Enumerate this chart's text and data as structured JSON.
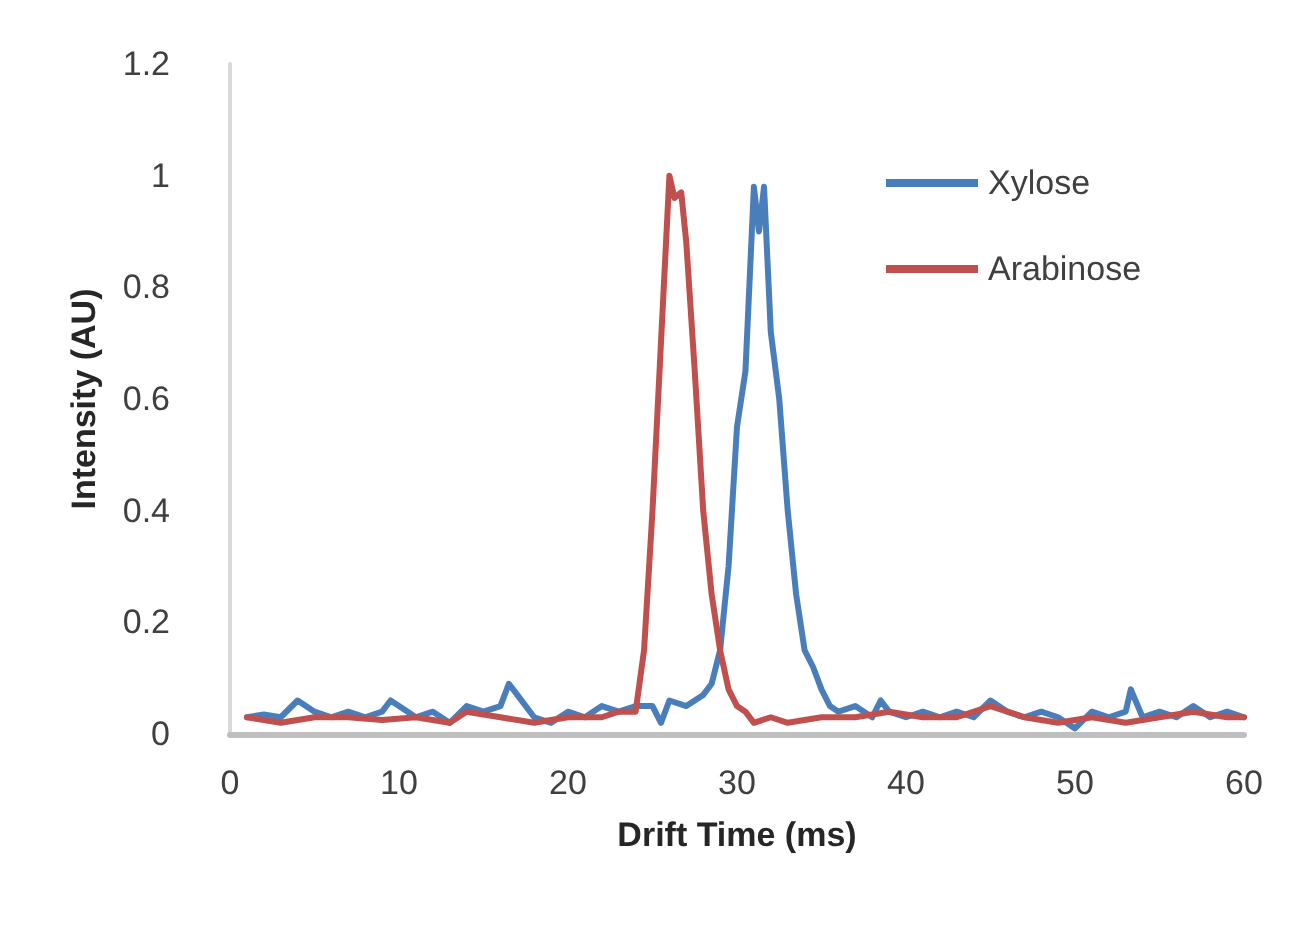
{
  "chart_data": {
    "type": "line",
    "xlabel": "Drift Time (ms)",
    "ylabel": "Intensity (AU)",
    "xlim": [
      0,
      60
    ],
    "xticks": [
      0,
      10,
      20,
      30,
      40,
      50,
      60
    ],
    "ylim": [
      0,
      1.2
    ],
    "yticks": [
      0,
      0.2,
      0.4,
      0.6,
      0.8,
      1,
      1.2
    ],
    "grid": false,
    "legend": "top right",
    "marker": "none",
    "line_style": "solid",
    "series": [
      {
        "name": "Xylose",
        "color": "#4a7ebb",
        "x": [
          1,
          2,
          3,
          4,
          5,
          6,
          7,
          8,
          9,
          9.5,
          10,
          11,
          12,
          13,
          14,
          15,
          16,
          16.5,
          17,
          18,
          19,
          20,
          21,
          22,
          23,
          24,
          25,
          25.5,
          26,
          27,
          28,
          28.5,
          29,
          29.5,
          30,
          30.5,
          31,
          31.3,
          31.6,
          32,
          32.5,
          33,
          33.5,
          34,
          34.5,
          35,
          35.5,
          36,
          37,
          38,
          38.5,
          39,
          40,
          41,
          42,
          43,
          44,
          45,
          46,
          47,
          48,
          49,
          50,
          51,
          52,
          53,
          53.3,
          54,
          55,
          56,
          57,
          58,
          59,
          60
        ],
        "values": [
          0.03,
          0.035,
          0.03,
          0.06,
          0.04,
          0.03,
          0.04,
          0.03,
          0.04,
          0.06,
          0.05,
          0.03,
          0.04,
          0.02,
          0.05,
          0.04,
          0.05,
          0.09,
          0.07,
          0.03,
          0.02,
          0.04,
          0.03,
          0.05,
          0.04,
          0.05,
          0.05,
          0.02,
          0.06,
          0.05,
          0.07,
          0.09,
          0.15,
          0.3,
          0.55,
          0.65,
          0.98,
          0.9,
          0.98,
          0.72,
          0.6,
          0.4,
          0.25,
          0.15,
          0.12,
          0.08,
          0.05,
          0.04,
          0.05,
          0.03,
          0.06,
          0.04,
          0.03,
          0.04,
          0.03,
          0.04,
          0.03,
          0.06,
          0.04,
          0.03,
          0.04,
          0.03,
          0.01,
          0.04,
          0.03,
          0.04,
          0.08,
          0.03,
          0.04,
          0.03,
          0.05,
          0.03,
          0.04,
          0.03
        ]
      },
      {
        "name": "Arabinose",
        "color": "#c0504d",
        "x": [
          1,
          3,
          5,
          7,
          9,
          11,
          13,
          14,
          16,
          18,
          20,
          22,
          23,
          24,
          24.5,
          25,
          25.5,
          26,
          26.3,
          26.7,
          27,
          27.5,
          28,
          28.5,
          29,
          29.5,
          30,
          30.5,
          31,
          32,
          33,
          35,
          37,
          39,
          41,
          43,
          45,
          47,
          49,
          51,
          53,
          55,
          57,
          59,
          60
        ],
        "values": [
          0.03,
          0.02,
          0.03,
          0.03,
          0.025,
          0.03,
          0.02,
          0.04,
          0.03,
          0.02,
          0.03,
          0.03,
          0.04,
          0.04,
          0.15,
          0.4,
          0.7,
          1,
          0.96,
          0.97,
          0.88,
          0.65,
          0.4,
          0.25,
          0.15,
          0.08,
          0.05,
          0.04,
          0.02,
          0.03,
          0.02,
          0.03,
          0.03,
          0.04,
          0.03,
          0.03,
          0.05,
          0.03,
          0.02,
          0.03,
          0.02,
          0.03,
          0.04,
          0.03,
          0.03
        ]
      }
    ]
  }
}
